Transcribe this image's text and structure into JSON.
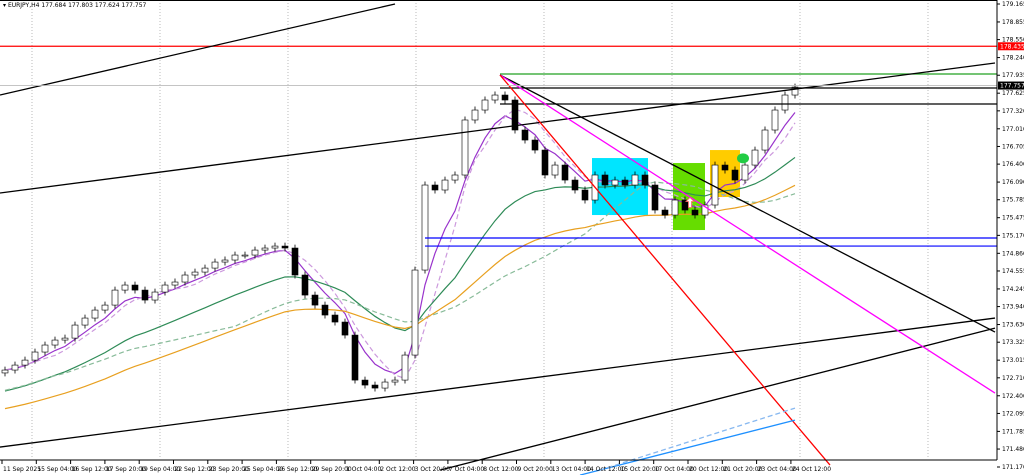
{
  "header": {
    "symbol": "EURJPY,H4",
    "ohlc": "177.684 177.803 177.624 177.757"
  },
  "chart_data": {
    "type": "candlestick",
    "ylim": [
      171.17,
      179.165
    ],
    "y_ticks": [
      "179.165",
      "178.855",
      "178.550",
      "178.240",
      "177.935",
      "177.625",
      "177.320",
      "177.010",
      "176.705",
      "176.400",
      "176.090",
      "175.785",
      "175.475",
      "175.170",
      "174.860",
      "174.555",
      "174.245",
      "173.940",
      "173.630",
      "173.325",
      "173.015",
      "172.710",
      "172.400",
      "172.095",
      "171.785",
      "171.480",
      "171.170"
    ],
    "x_ticks": [
      "11 Sep 2025",
      "15 Sep 04:00",
      "16 Sep 12:00",
      "17 Sep 20:00",
      "19 Sep 04:00",
      "22 Sep 12:00",
      "23 Sep 20:00",
      "25 Sep 04:00",
      "26 Sep 12:00",
      "29 Sep 20:00",
      "1 Oct 04:00",
      "2 Oct 12:00",
      "3 Oct 20:00",
      "7 Oct 04:00",
      "8 Oct 12:00",
      "9 Oct 20:00",
      "13 Oct 04:00",
      "14 Oct 12:00",
      "15 Oct 20:00",
      "17 Oct 04:00",
      "20 Oct 12:00",
      "21 Oct 20:00",
      "23 Oct 04:00",
      "24 Oct 12:00"
    ],
    "grid": "vertical dotted",
    "close": [
      172.844,
      172.93,
      173.016,
      173.155,
      173.276,
      173.362,
      173.396,
      173.621,
      173.742,
      173.88,
      173.966,
      174.225,
      174.312,
      174.225,
      174.053,
      174.191,
      174.312,
      174.364,
      174.485,
      174.536,
      174.605,
      174.709,
      174.744,
      174.83,
      174.83,
      174.916,
      174.951,
      174.985,
      174.951,
      174.485,
      174.139,
      173.966,
      173.794,
      173.673,
      173.448,
      172.671,
      172.585,
      172.533,
      172.637,
      172.671,
      173.103,
      174.571,
      176.039,
      175.953,
      176.125,
      176.212,
      177.162,
      177.334,
      177.507,
      177.593,
      177.507,
      176.989,
      176.816,
      176.643,
      176.212,
      176.384,
      176.125,
      175.953,
      175.78,
      176.212,
      176.039,
      176.125,
      176.039,
      176.212,
      176.039,
      175.607,
      175.521,
      175.78,
      175.607,
      175.521,
      175.694,
      176.384,
      176.298,
      176.125,
      176.384,
      176.643,
      176.989,
      177.334,
      177.593,
      177.731
    ],
    "current_price": {
      "value": "177.757",
      "color": "#000000"
    },
    "levels": [
      {
        "price": 178.435,
        "label": "178.435",
        "color": "#ff0000",
        "from": -1,
        "to": 100
      },
      {
        "price": 177.956,
        "color": "#22a022",
        "from": 49.5,
        "to": 100
      },
      {
        "price": 177.714,
        "color": "#000000",
        "from": 49.5,
        "to": 100
      },
      {
        "price": 177.438,
        "color": "#000000",
        "from": 49.5,
        "to": 100
      },
      {
        "price": 175.124,
        "color": "#0000ff",
        "from": 42,
        "to": 100
      },
      {
        "price": 174.985,
        "color": "#0000ff",
        "from": 42,
        "to": 100
      }
    ],
    "trendlines": [
      {
        "from": [
          -0.5,
          177.593
        ],
        "to": [
          39,
          179.165
        ],
        "color": "#000000"
      },
      {
        "from": [
          -0.5,
          175.901
        ],
        "to": [
          99,
          178.146
        ],
        "color": "#000000"
      },
      {
        "from": [
          -0.5,
          171.514
        ],
        "to": [
          99,
          173.742
        ],
        "color": "#000000"
      },
      {
        "from": [
          43.5,
          171.117
        ],
        "to": [
          99,
          173.569
        ],
        "color": "#000000"
      },
      {
        "from": [
          49.5,
          177.939
        ],
        "to": [
          99,
          173.5
        ],
        "color": "#000000"
      },
      {
        "from": [
          49.5,
          177.939
        ],
        "to": [
          99,
          172.447
        ],
        "color": "#ff00ff"
      },
      {
        "from": [
          49.5,
          177.939
        ],
        "to": [
          82.5,
          171.203
        ],
        "color": "#ff0000"
      },
      {
        "from": [
          57.5,
          171.03
        ],
        "to": [
          79,
          171.98
        ],
        "color": "#1e90ff"
      },
      {
        "from": [
          59.5,
          171.117
        ],
        "to": [
          79,
          172.187
        ],
        "color": "#87b8f0",
        "dashed": true
      }
    ],
    "zones": [
      {
        "from": [
          58.7,
          176.505
        ],
        "to": [
          64.3,
          175.521
        ],
        "color": "#00e5ff"
      },
      {
        "from": [
          66.8,
          176.419
        ],
        "to": [
          70,
          175.262
        ],
        "color": "#66dd00"
      },
      {
        "from": [
          70.5,
          176.643
        ],
        "to": [
          73.5,
          175.832
        ],
        "color": "#ffcc00"
      }
    ],
    "moving_averages": [
      {
        "color": "#9933cc"
      },
      {
        "color": "#cc99dd",
        "dashed": true
      },
      {
        "color": "#2e8b57"
      },
      {
        "color": "#88bb99",
        "dashed": true
      },
      {
        "color": "#e8a020"
      }
    ],
    "markers": [
      {
        "type": "arrow-up",
        "bar": 68.5,
        "price": 175.72,
        "color": "#ff6666"
      },
      {
        "type": "ellipse",
        "bar": 73.8,
        "price": 176.5,
        "color": "#22cc44"
      }
    ]
  }
}
